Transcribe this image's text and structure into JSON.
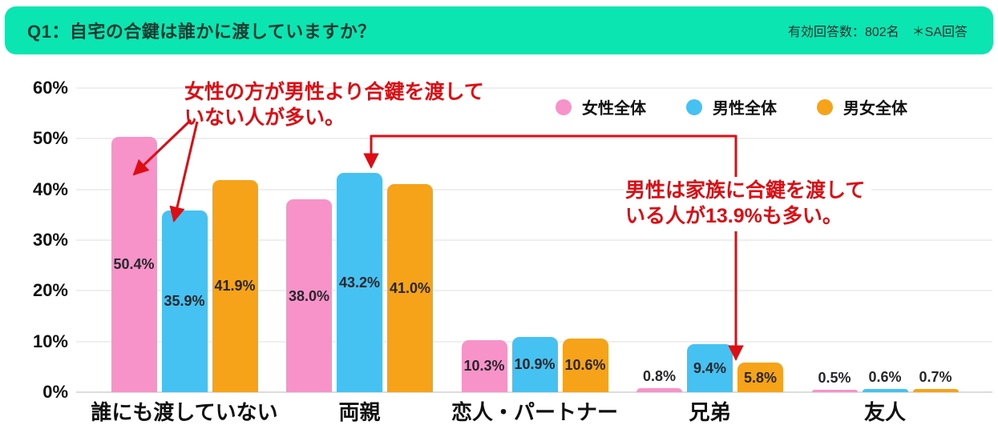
{
  "header": {
    "title": "Q1：自宅の合鍵は誰かに渡していますか？",
    "meta": "有効回答数：802名　＊SA回答",
    "bg_color": "#0be5b1",
    "text_color": "#1d3a31"
  },
  "colors": {
    "annotation_red": "#de0d13",
    "female_pink": "#f893ca",
    "male_blue": "#45c1f2",
    "total_orange": "#f6a319"
  },
  "legend": [
    {
      "label": "女性全体",
      "color": "#f893ca"
    },
    {
      "label": "男性全体",
      "color": "#45c1f2"
    },
    {
      "label": "男女全体",
      "color": "#f6a319"
    }
  ],
  "annotations": [
    {
      "text_lines": [
        "女性の方が男性より合鍵を渡して",
        "いない人が多い。"
      ],
      "color": "#de0d13",
      "points_to": [
        "女性全体-誰にも渡していない",
        "男性全体-誰にも渡していない"
      ]
    },
    {
      "text_lines": [
        "男性は家族に合鍵を渡して",
        "いる人が13.9%も多い。"
      ],
      "color": "#de0d13",
      "points_to": [
        "男性全体-両親",
        "男女全体-兄弟"
      ]
    }
  ],
  "chart_data": {
    "type": "bar",
    "title": "Q1：自宅の合鍵は誰かに渡していますか？",
    "categories": [
      "誰にも渡していない",
      "両親",
      "恋人・パートナー",
      "兄弟",
      "友人"
    ],
    "series": [
      {
        "name": "女性全体",
        "color": "#f893ca",
        "values": [
          50.4,
          38.0,
          10.3,
          0.8,
          0.5
        ],
        "value_labels": [
          "50.4%",
          "38.0%",
          "10.3%",
          "0.8%",
          "0.5%"
        ]
      },
      {
        "name": "男性全体",
        "color": "#45c1f2",
        "values": [
          35.9,
          43.2,
          10.9,
          9.4,
          0.6
        ],
        "value_labels": [
          "35.9%",
          "43.2%",
          "10.9%",
          "9.4%",
          "0.6%"
        ]
      },
      {
        "name": "男女全体",
        "color": "#f6a319",
        "values": [
          41.9,
          41.0,
          10.6,
          5.8,
          0.7
        ],
        "value_labels": [
          "41.9%",
          "41.0%",
          "10.6%",
          "5.8%",
          "0.7%"
        ]
      }
    ],
    "xlabel": "",
    "ylabel": "",
    "ylim": [
      0,
      60
    ],
    "ytick_step": 10,
    "ytick_suffix": "%",
    "grid": true,
    "legend_position": "top-right",
    "value_label_position": "inside-center (above bar when value < 3%)"
  }
}
